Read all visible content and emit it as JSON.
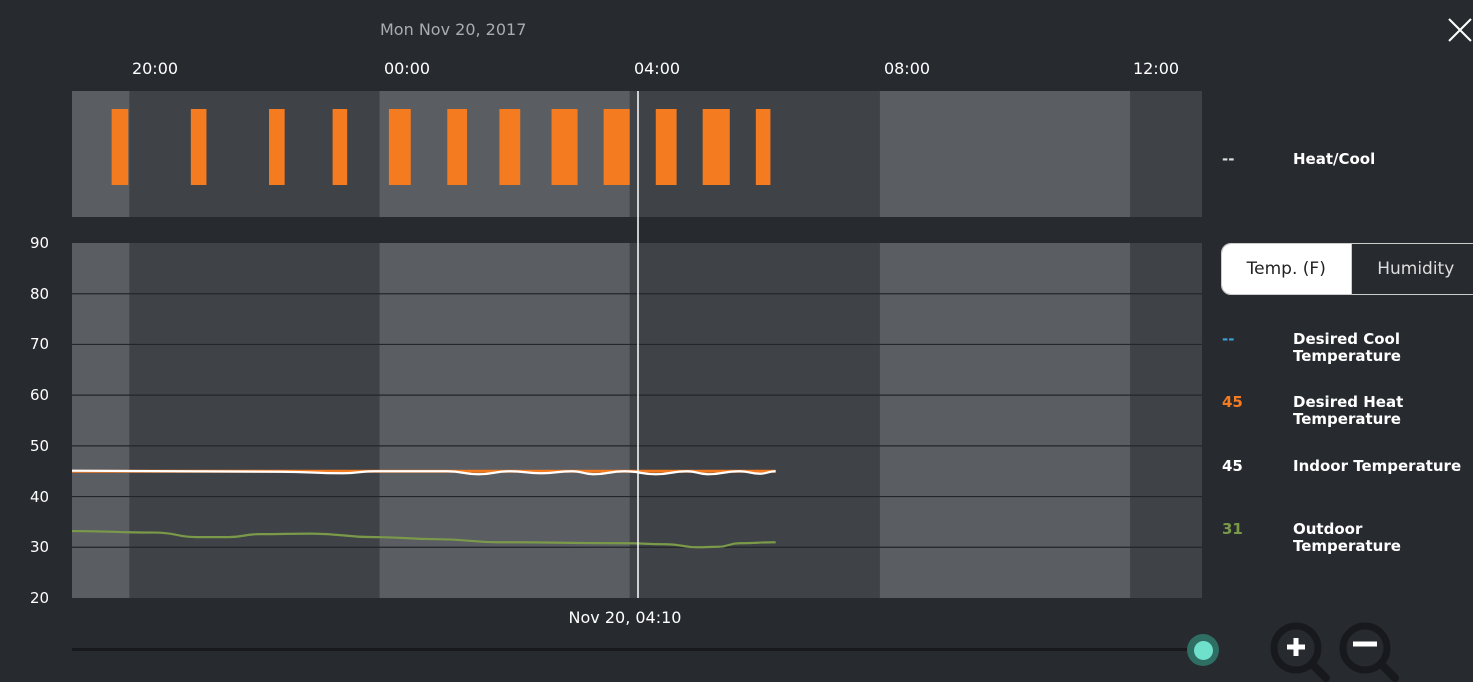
{
  "header": {
    "date": "Mon Nov 20, 2017",
    "ticks": [
      "20:00",
      "00:00",
      "04:00",
      "08:00",
      "12:00"
    ]
  },
  "colors": {
    "heat": "#f47b20",
    "indoor": "#ffffff",
    "outdoor": "#7a9a4a",
    "cool": "#3aa0d8",
    "band_light": "#5a5d62",
    "band_dark": "#3f4246"
  },
  "legend": {
    "heatcool": {
      "value": "--",
      "label": "Heat/Cool"
    },
    "toggle": {
      "temp": "Temp. (F)",
      "humidity": "Humidity",
      "selected": "Temp. (F)"
    },
    "items": [
      {
        "value": "--",
        "label": "Desired Cool Temperature",
        "color": "#3aa0d8"
      },
      {
        "value": "45",
        "label": "Desired Heat Temperature",
        "color": "#f47b20"
      },
      {
        "value": "45",
        "label": "Indoor Temperature",
        "color": "#ffffff"
      },
      {
        "value": "31",
        "label": "Outdoor Temperature",
        "color": "#7a9a4a"
      }
    ]
  },
  "cursor": {
    "label": "Nov 20, 04:10"
  },
  "chart_data": {
    "type": "line",
    "x_range": [
      "18:40",
      "12:44"
    ],
    "ylim": [
      20,
      90
    ],
    "yticks": [
      "90",
      "80",
      "70",
      "60",
      "50",
      "40",
      "30",
      "20"
    ],
    "day_bands": [
      [
        "19:35",
        "23:35"
      ],
      [
        "03:35",
        "07:35"
      ],
      [
        "11:35",
        "12:44"
      ]
    ],
    "heat_periods": [
      [
        "19:18",
        "19:34"
      ],
      [
        "20:34",
        "20:49"
      ],
      [
        "21:49",
        "22:04"
      ],
      [
        "22:50",
        "23:04"
      ],
      [
        "23:44",
        "00:05"
      ],
      [
        "00:40",
        "00:59"
      ],
      [
        "01:30",
        "01:50"
      ],
      [
        "02:20",
        "02:45"
      ],
      [
        "03:10",
        "03:35"
      ],
      [
        "04:00",
        "04:20"
      ],
      [
        "04:45",
        "05:11"
      ],
      [
        "05:36",
        "05:50"
      ]
    ],
    "series": [
      {
        "name": "Desired Heat Temperature",
        "points": [
          [
            "18:40",
            45
          ],
          [
            "05:55",
            45
          ]
        ]
      },
      {
        "name": "Indoor Temperature",
        "points": [
          [
            "18:40",
            45.1
          ],
          [
            "22:00",
            44.9
          ],
          [
            "23:00",
            44.6
          ],
          [
            "23:30",
            45
          ],
          [
            "00:40",
            45
          ],
          [
            "01:10",
            44.4
          ],
          [
            "01:40",
            45
          ],
          [
            "02:10",
            44.6
          ],
          [
            "02:40",
            45
          ],
          [
            "03:00",
            44.4
          ],
          [
            "03:30",
            45
          ],
          [
            "04:00",
            44.4
          ],
          [
            "04:30",
            45
          ],
          [
            "04:50",
            44.4
          ],
          [
            "05:20",
            45
          ],
          [
            "05:40",
            44.5
          ],
          [
            "05:55",
            45
          ]
        ]
      },
      {
        "name": "Outdoor Temperature",
        "points": [
          [
            "18:40",
            33.2
          ],
          [
            "20:00",
            32.9
          ],
          [
            "20:40",
            32
          ],
          [
            "21:10",
            32
          ],
          [
            "21:40",
            32.6
          ],
          [
            "22:30",
            32.7
          ],
          [
            "23:30",
            32
          ],
          [
            "00:30",
            31.6
          ],
          [
            "01:30",
            31
          ],
          [
            "03:30",
            30.8
          ],
          [
            "04:10",
            30.6
          ],
          [
            "04:40",
            30
          ],
          [
            "05:00",
            30.1
          ],
          [
            "05:20",
            30.8
          ],
          [
            "05:55",
            31
          ]
        ]
      }
    ]
  }
}
